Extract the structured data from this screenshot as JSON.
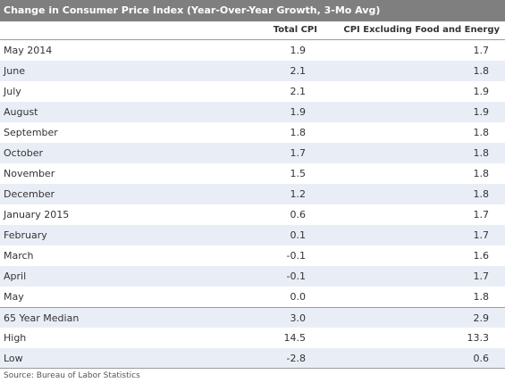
{
  "chart_data": {
    "type": "table",
    "title": "Change in Consumer Price Index (Year-Over-Year Growth, 3-Mo Avg)",
    "columns": [
      "Total CPI",
      "CPI Excluding Food and Energy"
    ],
    "rows": [
      {
        "label": "May 2014",
        "values": [
          "1.9",
          "1.7"
        ]
      },
      {
        "label": "June",
        "values": [
          "2.1",
          "1.8"
        ]
      },
      {
        "label": "July",
        "values": [
          "2.1",
          "1.9"
        ]
      },
      {
        "label": "August",
        "values": [
          "1.9",
          "1.9"
        ]
      },
      {
        "label": "September",
        "values": [
          "1.8",
          "1.8"
        ]
      },
      {
        "label": "October",
        "values": [
          "1.7",
          "1.8"
        ]
      },
      {
        "label": "November",
        "values": [
          "1.5",
          "1.8"
        ]
      },
      {
        "label": "December",
        "values": [
          "1.2",
          "1.8"
        ]
      },
      {
        "label": "January 2015",
        "values": [
          "0.6",
          "1.7"
        ]
      },
      {
        "label": "February",
        "values": [
          "0.1",
          "1.7"
        ]
      },
      {
        "label": "March",
        "values": [
          "-0.1",
          "1.6"
        ]
      },
      {
        "label": "April",
        "values": [
          "-0.1",
          "1.7"
        ]
      },
      {
        "label": "May",
        "values": [
          "0.0",
          "1.8"
        ]
      }
    ],
    "summary_rows": [
      {
        "label": "65 Year Median",
        "values": [
          "3.0",
          "2.9"
        ]
      },
      {
        "label": "High",
        "values": [
          "14.5",
          "13.3"
        ]
      },
      {
        "label": "Low",
        "values": [
          "-2.8",
          "0.6"
        ]
      }
    ],
    "source": "Source: Bureau of Labor Statistics",
    "colors": {
      "title_bar": "#7f7f7f",
      "stripe": "#e9eef6",
      "rule": "#9a9a9a"
    }
  }
}
